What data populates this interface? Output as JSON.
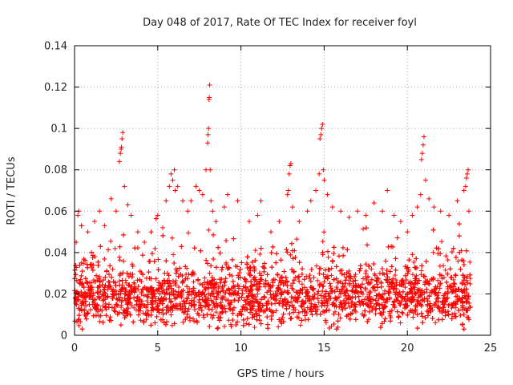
{
  "chart_data": {
    "type": "scatter",
    "title": "Day 048 of 2017, Rate Of TEC Index for receiver foyl",
    "xlabel": "GPS time / hours",
    "ylabel": "ROTI / TECUs",
    "xlim": [
      0,
      25
    ],
    "ylim": [
      0,
      0.14
    ],
    "xticks": [
      0,
      5,
      10,
      15,
      20,
      25
    ],
    "yticks": [
      0,
      0.02,
      0.04,
      0.06,
      0.08,
      0.1,
      0.12,
      0.14
    ],
    "xtick_labels": [
      "0",
      "5",
      "10",
      "15",
      "20",
      "25"
    ],
    "ytick_labels": [
      "0",
      "0.02",
      "0.04",
      "0.06",
      "0.08",
      "0.1",
      "0.12",
      "0.14"
    ],
    "grid": true,
    "marker": "+",
    "color": "#ff0000",
    "series": [
      {
        "name": "ROTI",
        "points": [
          [
            0.1,
            0.045
          ],
          [
            0.2,
            0.058
          ],
          [
            0.25,
            0.06
          ],
          [
            0.4,
            0.035
          ],
          [
            0.8,
            0.05
          ],
          [
            1.2,
            0.055
          ],
          [
            1.5,
            0.06
          ],
          [
            1.8,
            0.053
          ],
          [
            2.2,
            0.066
          ],
          [
            2.5,
            0.06
          ],
          [
            2.7,
            0.084
          ],
          [
            2.75,
            0.088
          ],
          [
            2.8,
            0.09
          ],
          [
            2.82,
            0.091
          ],
          [
            2.85,
            0.095
          ],
          [
            2.9,
            0.098
          ],
          [
            3.0,
            0.072
          ],
          [
            3.2,
            0.063
          ],
          [
            3.4,
            0.058
          ],
          [
            3.8,
            0.05
          ],
          [
            4.2,
            0.045
          ],
          [
            4.6,
            0.05
          ],
          [
            5.0,
            0.058
          ],
          [
            5.3,
            0.052
          ],
          [
            5.5,
            0.065
          ],
          [
            5.7,
            0.072
          ],
          [
            5.8,
            0.078
          ],
          [
            5.9,
            0.075
          ],
          [
            6.0,
            0.08
          ],
          [
            6.05,
            0.07
          ],
          [
            6.2,
            0.072
          ],
          [
            6.5,
            0.065
          ],
          [
            6.8,
            0.06
          ],
          [
            7.0,
            0.065
          ],
          [
            7.3,
            0.072
          ],
          [
            7.5,
            0.07
          ],
          [
            7.7,
            0.068
          ],
          [
            7.9,
            0.08
          ],
          [
            8.0,
            0.093
          ],
          [
            8.02,
            0.097
          ],
          [
            8.05,
            0.1
          ],
          [
            8.08,
            0.114
          ],
          [
            8.1,
            0.115
          ],
          [
            8.12,
            0.121
          ],
          [
            8.15,
            0.08
          ],
          [
            8.2,
            0.065
          ],
          [
            8.3,
            0.06
          ],
          [
            8.5,
            0.055
          ],
          [
            9.0,
            0.062
          ],
          [
            9.2,
            0.068
          ],
          [
            9.8,
            0.065
          ],
          [
            10.5,
            0.055
          ],
          [
            11.0,
            0.058
          ],
          [
            11.2,
            0.065
          ],
          [
            11.8,
            0.05
          ],
          [
            12.3,
            0.055
          ],
          [
            12.8,
            0.068
          ],
          [
            12.85,
            0.07
          ],
          [
            12.9,
            0.078
          ],
          [
            12.95,
            0.082
          ],
          [
            13.0,
            0.083
          ],
          [
            13.1,
            0.062
          ],
          [
            13.5,
            0.055
          ],
          [
            14.0,
            0.06
          ],
          [
            14.2,
            0.065
          ],
          [
            14.5,
            0.07
          ],
          [
            14.7,
            0.078
          ],
          [
            14.75,
            0.095
          ],
          [
            14.8,
            0.097
          ],
          [
            14.85,
            0.1
          ],
          [
            14.9,
            0.102
          ],
          [
            14.95,
            0.08
          ],
          [
            15.0,
            0.075
          ],
          [
            15.2,
            0.068
          ],
          [
            15.5,
            0.062
          ],
          [
            16.0,
            0.06
          ],
          [
            16.5,
            0.057
          ],
          [
            17.0,
            0.06
          ],
          [
            17.5,
            0.058
          ],
          [
            18.0,
            0.064
          ],
          [
            18.5,
            0.06
          ],
          [
            18.8,
            0.07
          ],
          [
            19.2,
            0.058
          ],
          [
            19.6,
            0.055
          ],
          [
            20.0,
            0.05
          ],
          [
            20.3,
            0.058
          ],
          [
            20.6,
            0.062
          ],
          [
            20.8,
            0.068
          ],
          [
            20.85,
            0.085
          ],
          [
            20.9,
            0.088
          ],
          [
            20.95,
            0.092
          ],
          [
            21.0,
            0.096
          ],
          [
            21.1,
            0.075
          ],
          [
            21.3,
            0.066
          ],
          [
            21.6,
            0.062
          ],
          [
            22.0,
            0.06
          ],
          [
            22.5,
            0.058
          ],
          [
            23.0,
            0.065
          ],
          [
            23.4,
            0.07
          ],
          [
            23.5,
            0.072
          ],
          [
            23.55,
            0.076
          ],
          [
            23.6,
            0.078
          ],
          [
            23.65,
            0.08
          ],
          [
            23.7,
            0.06
          ]
        ],
        "bulk": {
          "x_range": [
            0,
            23.8
          ],
          "y_range": [
            0.003,
            0.06
          ],
          "typical": 0.018,
          "approx_points": 3500
        }
      }
    ]
  }
}
